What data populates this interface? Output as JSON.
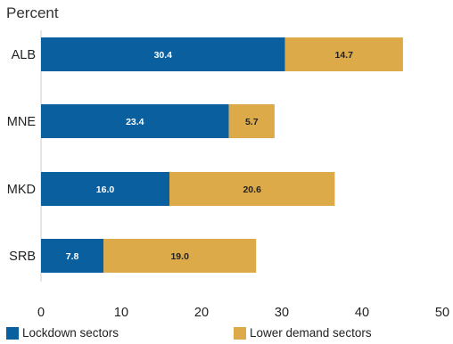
{
  "chart_data": {
    "type": "bar",
    "orientation": "horizontal",
    "stacked": true,
    "unit_label": "Percent",
    "categories": [
      "ALB",
      "MNE",
      "MKD",
      "SRB"
    ],
    "series": [
      {
        "name": "Lockdown sectors",
        "color": "#0a5f9e",
        "label_color": "#ffffff",
        "values": [
          30.4,
          23.4,
          16.0,
          7.8
        ]
      },
      {
        "name": "Lower demand sectors",
        "color": "#dcaa48",
        "label_color": "#222222",
        "values": [
          14.7,
          5.7,
          20.6,
          19.0
        ]
      }
    ],
    "data_labels": [
      [
        "30.4",
        "23.4",
        "16.0",
        "7.8"
      ],
      [
        "14.7",
        "5.7",
        "20.6",
        "19.0"
      ]
    ],
    "xlim": [
      0,
      50
    ],
    "xticks": [
      "0",
      "10",
      "20",
      "30",
      "40",
      "50"
    ],
    "grid": false,
    "legend_position": "bottom"
  }
}
